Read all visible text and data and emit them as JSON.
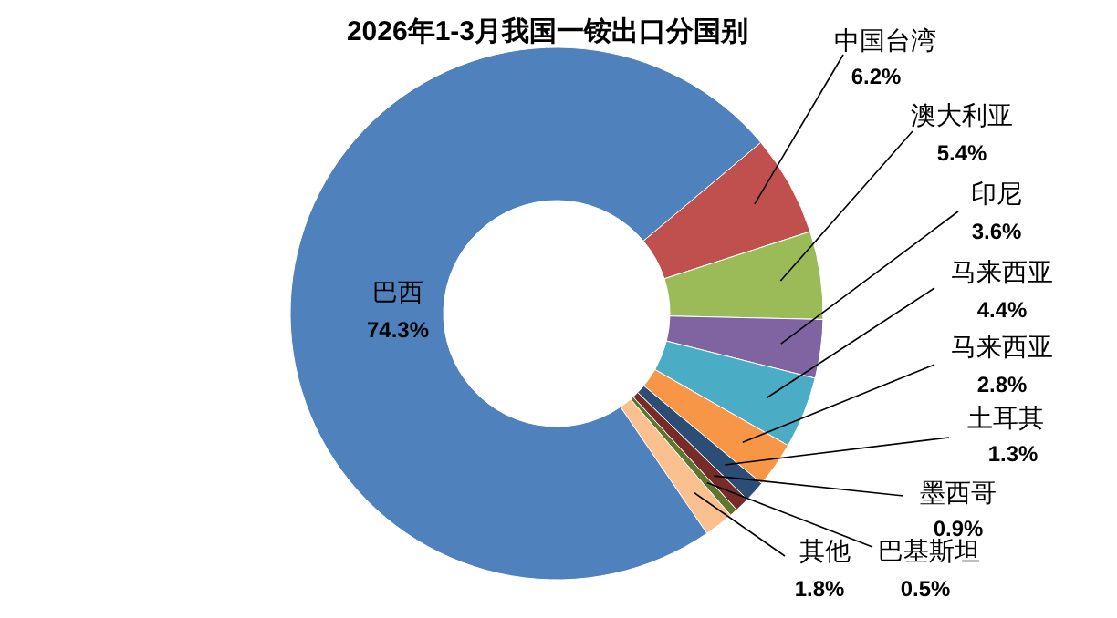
{
  "chart_data": {
    "type": "donut",
    "title": "2026年1-3月我国一铵出口分国别",
    "categories": [
      "中国台湾",
      "澳大利亚",
      "印尼",
      "马来西亚",
      "马来西亚",
      "土耳其",
      "墨西哥",
      "巴基斯坦",
      "其他",
      "巴西"
    ],
    "values": [
      6.2,
      5.4,
      3.6,
      4.4,
      2.8,
      1.3,
      0.9,
      0.5,
      1.8,
      74.3
    ],
    "value_labels": [
      "6.2%",
      "5.4%",
      "3.6%",
      "4.4%",
      "2.8%",
      "1.3%",
      "0.9%",
      "0.5%",
      "1.8%",
      "74.3%"
    ],
    "colors": [
      "#c0504d",
      "#9bbb59",
      "#8064a2",
      "#4bacc6",
      "#f79646",
      "#2c4d75",
      "#772c2a",
      "#5f7530",
      "#fac090",
      "#4f81bd"
    ]
  }
}
